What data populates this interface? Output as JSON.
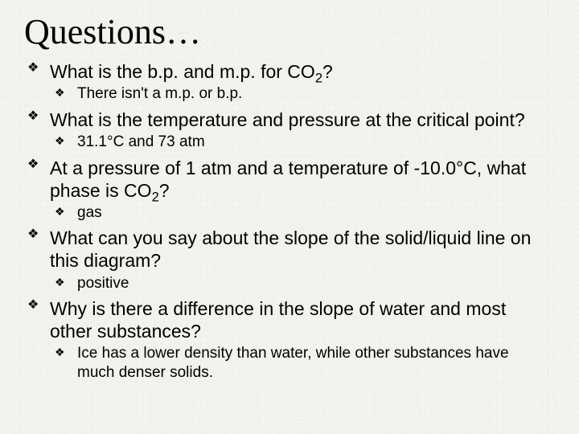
{
  "title": "Questions…",
  "bullet_glyph": "❖",
  "text_color": "#000000",
  "background_color": "#f2f2ee",
  "title_fontsize": 44,
  "question_fontsize": 23,
  "answer_fontsize": 19,
  "items": [
    {
      "question_html": "What is the b.p. and m.p. for CO<sub>2</sub>?",
      "answer_html": "There isn't a m.p. or b.p."
    },
    {
      "question_html": "What is the temperature and pressure at the critical point?",
      "answer_html": "31.1°C and 73 atm"
    },
    {
      "question_html": "At a pressure of 1 atm and a temperature of -10.0°C, what phase is  CO<sub>2</sub>?",
      "answer_html": "gas"
    },
    {
      "question_html": "What can you say about the slope of the solid/liquid line on this diagram?",
      "answer_html": " positive"
    },
    {
      "question_html": "Why is there a difference in the slope of water and most other substances?",
      "answer_html": "Ice has a lower density than water, while other substances have much denser solids."
    }
  ]
}
